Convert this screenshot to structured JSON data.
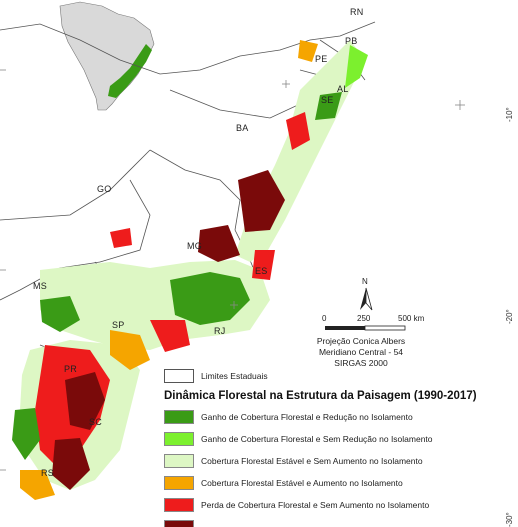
{
  "map": {
    "state_labels": [
      "RN",
      "PB",
      "PE",
      "AL",
      "SE",
      "BA",
      "GO",
      "MG",
      "ES",
      "MS",
      "SP",
      "RJ",
      "PR",
      "SC",
      "RS"
    ],
    "graticule_labels": [
      "-10°",
      "-20°",
      "-30°"
    ],
    "north_label": "N",
    "scale_labels": [
      "0",
      "250",
      "500 km"
    ],
    "projection_lines": [
      "Projeção Conica Albers",
      "Meridiano Central - 54",
      "SIRGAS 2000"
    ]
  },
  "legend": {
    "state_limits_label": "Limites Estaduais",
    "title": "Dinâmica Florestal na Estrutura da Paisagem (1990-2017)",
    "items": [
      {
        "label": "Ganho de Cobertura Florestal e Redução no Isolamento",
        "color": "#3a9b16"
      },
      {
        "label": "Ganho de Cobertura Florestal e Sem Redução no Isolamento",
        "color": "#7cf02e"
      },
      {
        "label": "Cobertura Florestal Estável e Sem Aumento no Isolamento",
        "color": "#ddf7c4"
      },
      {
        "label": "Cobertura Florestal Estável e Aumento no Isolamento",
        "color": "#f5a500"
      },
      {
        "label": "Perda de Cobertura Florestal e Sem Aumento no Isolamento",
        "color": "#ee1c1c"
      },
      {
        "label": "",
        "color": "#7a0a0a"
      }
    ]
  },
  "colors": {
    "inset_land": "#d9d9d9",
    "inset_ocean": "#ffffff",
    "background_land": "#ffffff",
    "outline": "#555555"
  }
}
